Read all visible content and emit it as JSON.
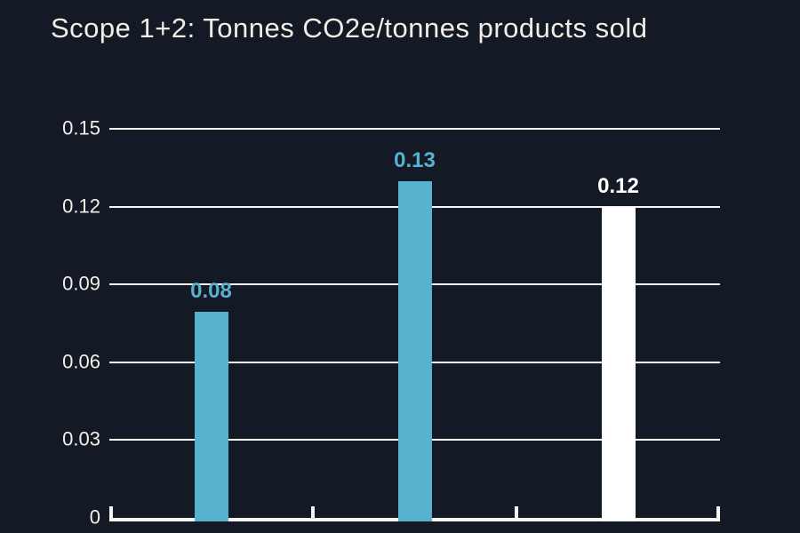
{
  "title": "Scope 1+2: Tonnes CO2e/tonnes products sold",
  "chart_data": {
    "type": "bar",
    "title": "Scope 1+2: Tonnes CO2e/tonnes products sold",
    "categories": [
      "",
      "",
      ""
    ],
    "values": [
      0.08,
      0.13,
      0.12
    ],
    "value_labels": [
      "0.08",
      "0.13",
      "0.12"
    ],
    "bar_colors": [
      "#58b1cf",
      "#58b1cf",
      "#ffffff"
    ],
    "value_label_colors": [
      "#58b1cf",
      "#58b1cf",
      "#ffffff"
    ],
    "xlabel": "",
    "ylabel": "",
    "ylim": [
      0,
      0.15
    ],
    "yticks": [
      0,
      0.03,
      0.06,
      0.09,
      0.12,
      0.15
    ],
    "ytick_labels_top_to_bottom": [
      "0.15",
      "0.12",
      "0.09",
      "0.06",
      "0.03",
      "0"
    ],
    "x_tick_labels": [],
    "grid": true,
    "gridline_color": "#f7f6f3",
    "legend": false
  },
  "colors": {
    "background": "#131a25",
    "title_text": "#f1eee7",
    "axis_text": "#f3f0e9",
    "bar_blue": "#58b1cf",
    "bar_white": "#ffffff",
    "gridline": "#f7f6f3"
  }
}
